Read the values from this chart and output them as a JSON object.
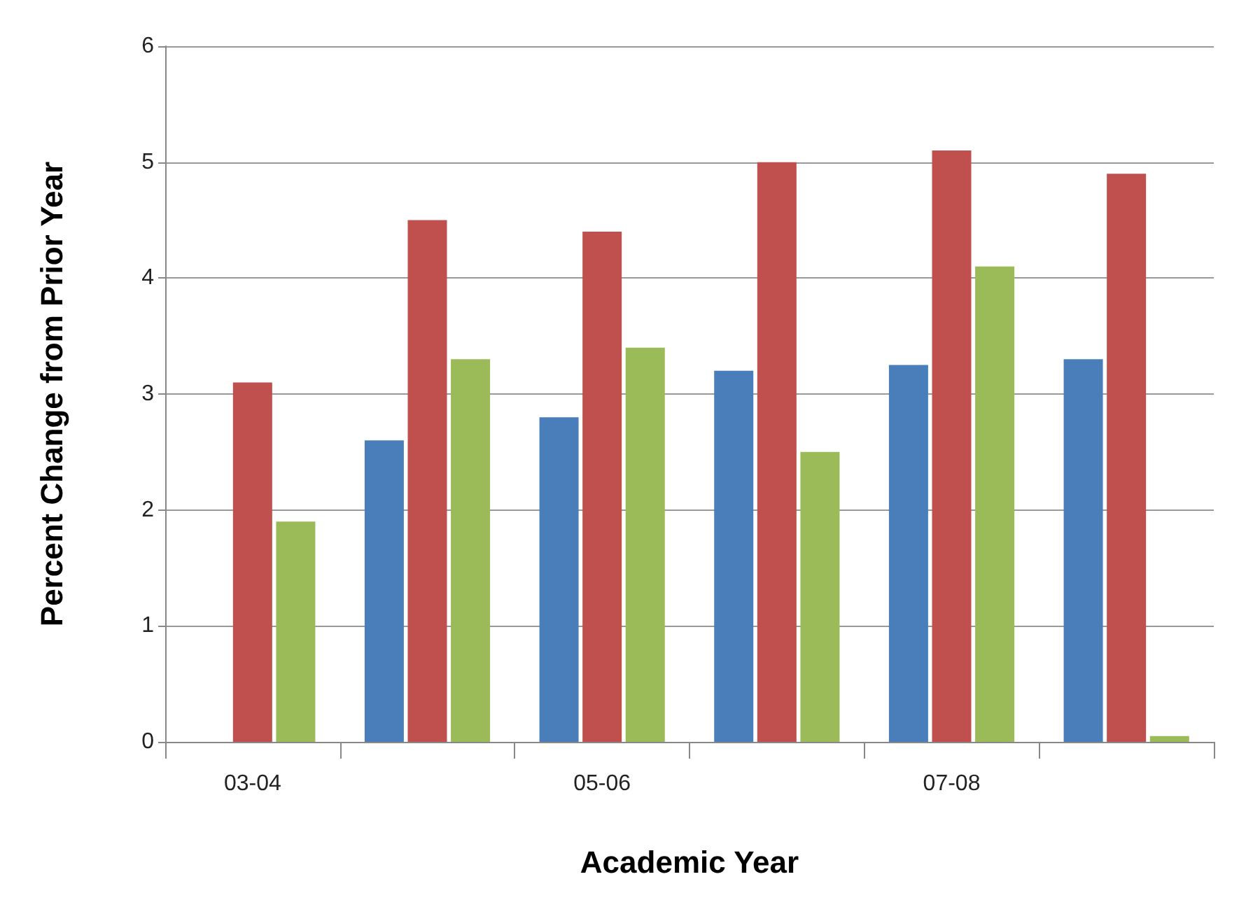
{
  "chart_data": {
    "type": "bar",
    "xlabel": "Academic Year",
    "ylabel": "Percent Change from Prior Year",
    "categories": [
      "03-04",
      null,
      "05-06",
      null,
      "07-08",
      null
    ],
    "series": [
      {
        "color": "#4a7ebb",
        "values": [
          0,
          2.6,
          2.8,
          3.2,
          3.25,
          3.3
        ]
      },
      {
        "color": "#c0504d",
        "values": [
          3.1,
          4.5,
          4.4,
          5.0,
          5.1,
          4.9
        ]
      },
      {
        "color": "#9bbb59",
        "values": [
          1.9,
          3.3,
          3.4,
          2.5,
          4.1,
          0.05
        ]
      }
    ],
    "ylim": [
      0,
      6
    ],
    "yticks": [
      0,
      1,
      2,
      3,
      4,
      5,
      6
    ],
    "grid": "y"
  }
}
